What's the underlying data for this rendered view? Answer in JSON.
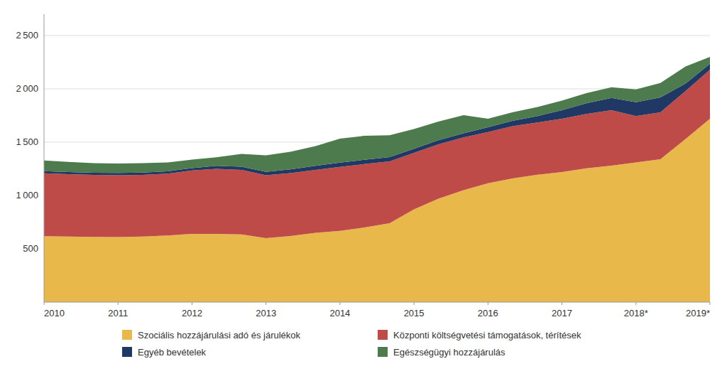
{
  "chart_data": {
    "type": "area",
    "stacked": true,
    "grid": true,
    "legend": "bottom",
    "x": [
      2010,
      2010.33,
      2010.67,
      2011,
      2011.33,
      2011.67,
      2012,
      2012.33,
      2012.67,
      2013,
      2013.33,
      2013.67,
      2014,
      2014.33,
      2014.67,
      2015,
      2015.33,
      2015.67,
      2016,
      2016.33,
      2016.67,
      2017,
      2017.33,
      2017.67,
      2018,
      2018.33,
      2018.67,
      2019
    ],
    "xlim": [
      2010,
      2019
    ],
    "xticks": [
      2010,
      2011,
      2012,
      2013,
      2014,
      2015,
      2016,
      2017,
      {
        "value": 2018,
        "label": "2018*"
      },
      {
        "value": 2019,
        "label": "2019*"
      }
    ],
    "ylim": [
      0,
      2700
    ],
    "yticks": [
      500,
      {
        "value": 1000,
        "label": "1 000"
      },
      {
        "value": 1500,
        "label": "1 500"
      },
      {
        "value": 2000,
        "label": "2 000"
      },
      {
        "value": 2500,
        "label": "2 500"
      }
    ],
    "series": [
      {
        "name": "Szociális hozzájárulási adó és járulékok",
        "color": "#E8B84B",
        "values": [
          618,
          615,
          612,
          610,
          615,
          625,
          640,
          640,
          635,
          600,
          620,
          650,
          668,
          700,
          740,
          870,
          970,
          1050,
          1115,
          1160,
          1195,
          1220,
          1255,
          1280,
          1310,
          1340,
          1530,
          1720
        ]
      },
      {
        "name": "Központi költségvetési támogatások, térítések",
        "color": "#BE4B48",
        "values": [
          590,
          585,
          582,
          580,
          578,
          580,
          595,
          610,
          605,
          590,
          590,
          590,
          600,
          595,
          580,
          530,
          510,
          495,
          480,
          490,
          490,
          500,
          510,
          520,
          435,
          440,
          450,
          460
        ]
      },
      {
        "name": "Egyéb bevételek",
        "color": "#1F3864",
        "values": [
          20,
          20,
          20,
          22,
          22,
          22,
          22,
          28,
          30,
          32,
          35,
          38,
          40,
          40,
          40,
          38,
          38,
          38,
          45,
          50,
          60,
          80,
          100,
          115,
          130,
          140,
          70,
          55
        ]
      },
      {
        "name": "Egészségügyi hozzájárulás",
        "color": "#4E7B4E",
        "values": [
          100,
          95,
          90,
          88,
          88,
          83,
          80,
          80,
          120,
          155,
          165,
          185,
          225,
          225,
          205,
          185,
          175,
          170,
          80,
          80,
          85,
          90,
          95,
          100,
          120,
          135,
          160,
          65
        ]
      }
    ]
  }
}
